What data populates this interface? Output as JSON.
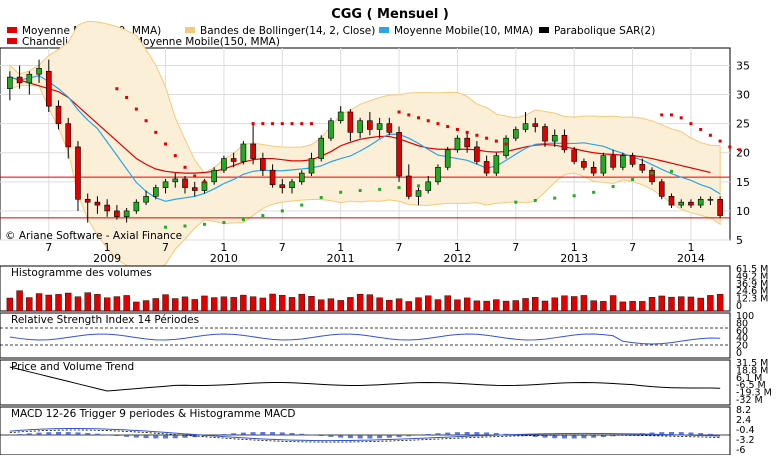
{
  "title": "CGG  ( Mensuel )",
  "copyright": "© Ariane Software - Axial Finance",
  "legend": [
    {
      "label": "Moyenne Mobile(20, MMA)",
      "color": "#e00000"
    },
    {
      "label": "Bandes de Bollinger(14, 2, Close)",
      "color": "#f5c97a"
    },
    {
      "label": "Moyenne Mobile(10, MMA)",
      "color": "#2aa6e8"
    },
    {
      "label": "Parabolique SAR(2)",
      "color": "#000000"
    },
    {
      "label": "Chandeliers(5)",
      "color": "#e00000"
    },
    {
      "label": "Moyenne Mobile(150, MMA)",
      "color": "#22cc22"
    }
  ],
  "x_axis": {
    "months": [
      {
        "label": "7",
        "i": 4
      },
      {
        "label": "1",
        "i": 10
      },
      {
        "label": "7",
        "i": 16
      },
      {
        "label": "1",
        "i": 22
      },
      {
        "label": "7",
        "i": 28
      },
      {
        "label": "1",
        "i": 34
      },
      {
        "label": "7",
        "i": 40
      },
      {
        "label": "1",
        "i": 46
      },
      {
        "label": "7",
        "i": 52
      },
      {
        "label": "1",
        "i": 58
      },
      {
        "label": "7",
        "i": 64
      },
      {
        "label": "1",
        "i": 70
      }
    ],
    "years": [
      {
        "label": "2009",
        "i": 10
      },
      {
        "label": "2010",
        "i": 22
      },
      {
        "label": "2011",
        "i": 34
      },
      {
        "label": "2012",
        "i": 46
      },
      {
        "label": "2013",
        "i": 58
      },
      {
        "label": "2014",
        "i": 70
      }
    ]
  },
  "panels": {
    "price": {
      "ticks": [
        "35",
        "30",
        "25",
        "20",
        "15",
        "10",
        "5"
      ]
    },
    "volume": {
      "title": "Histogramme des volumes",
      "ticks": [
        "61.5 M",
        "49.2 M",
        "36.9 M",
        "24.6 M",
        "12.3 M",
        "0"
      ]
    },
    "rsi": {
      "title": "Relative Strength Index 14 Périodes",
      "ticks": [
        "100",
        "80",
        "60",
        "40",
        "20",
        "0"
      ]
    },
    "pvt": {
      "title": "Price and Volume Trend",
      "ticks": [
        "31.5 M",
        "18.8 M",
        "6.1 M",
        "-6.5 M",
        "-19.3 M",
        "-32 M"
      ]
    },
    "macd": {
      "title": "MACD 12-26   Trigger 9 periodes & Histogramme MACD",
      "ticks": [
        "8.2",
        "2.4",
        "-0.4",
        "-3.2",
        "-6"
      ]
    }
  },
  "chart_data": {
    "type": "candlestick",
    "title": "CGG  ( Mensuel )",
    "price_range": [
      5,
      38
    ],
    "horizontal_lines": [
      15.8,
      8.8
    ],
    "candles": [
      {
        "o": 31,
        "h": 34,
        "l": 29,
        "c": 33
      },
      {
        "o": 33,
        "h": 35,
        "l": 31,
        "c": 32
      },
      {
        "o": 32,
        "h": 34,
        "l": 30,
        "c": 33.5
      },
      {
        "o": 33.5,
        "h": 36,
        "l": 32,
        "c": 34.5
      },
      {
        "o": 34,
        "h": 36,
        "l": 27,
        "c": 28
      },
      {
        "o": 28,
        "h": 29,
        "l": 24,
        "c": 25
      },
      {
        "o": 25,
        "h": 26,
        "l": 19,
        "c": 21
      },
      {
        "o": 21,
        "h": 22,
        "l": 10,
        "c": 12
      },
      {
        "o": 12,
        "h": 13,
        "l": 8,
        "c": 11.5
      },
      {
        "o": 11.5,
        "h": 12.5,
        "l": 9.5,
        "c": 11
      },
      {
        "o": 11,
        "h": 12,
        "l": 9,
        "c": 10
      },
      {
        "o": 10,
        "h": 11,
        "l": 8.5,
        "c": 9
      },
      {
        "o": 9,
        "h": 10.5,
        "l": 8,
        "c": 10
      },
      {
        "o": 10,
        "h": 12,
        "l": 9.5,
        "c": 11.5
      },
      {
        "o": 11.5,
        "h": 13.5,
        "l": 11,
        "c": 12.5
      },
      {
        "o": 12.5,
        "h": 14.5,
        "l": 12,
        "c": 14
      },
      {
        "o": 14,
        "h": 15.5,
        "l": 13,
        "c": 15
      },
      {
        "o": 15,
        "h": 16.5,
        "l": 14,
        "c": 15.5
      },
      {
        "o": 15.5,
        "h": 16,
        "l": 13,
        "c": 14
      },
      {
        "o": 14,
        "h": 15,
        "l": 12.5,
        "c": 13.5
      },
      {
        "o": 13.5,
        "h": 15.5,
        "l": 13,
        "c": 15
      },
      {
        "o": 15,
        "h": 17.5,
        "l": 14.5,
        "c": 17
      },
      {
        "o": 17,
        "h": 19.5,
        "l": 16.5,
        "c": 19
      },
      {
        "o": 19,
        "h": 20,
        "l": 17.5,
        "c": 18.5
      },
      {
        "o": 18.5,
        "h": 22,
        "l": 18,
        "c": 21.5
      },
      {
        "o": 21.5,
        "h": 25,
        "l": 18,
        "c": 19
      },
      {
        "o": 19,
        "h": 20,
        "l": 16,
        "c": 17
      },
      {
        "o": 17,
        "h": 18,
        "l": 14,
        "c": 14.5
      },
      {
        "o": 14.5,
        "h": 15.5,
        "l": 13,
        "c": 14
      },
      {
        "o": 14,
        "h": 15.5,
        "l": 13,
        "c": 15
      },
      {
        "o": 15,
        "h": 17,
        "l": 14.5,
        "c": 16.5
      },
      {
        "o": 16.5,
        "h": 20,
        "l": 16,
        "c": 19
      },
      {
        "o": 19,
        "h": 23,
        "l": 18.5,
        "c": 22.5
      },
      {
        "o": 22.5,
        "h": 26,
        "l": 22,
        "c": 25.5
      },
      {
        "o": 25.5,
        "h": 28,
        "l": 25,
        "c": 27
      },
      {
        "o": 27,
        "h": 27.5,
        "l": 22,
        "c": 23.5
      },
      {
        "o": 23.5,
        "h": 26,
        "l": 22.5,
        "c": 25.5
      },
      {
        "o": 25.5,
        "h": 27,
        "l": 23,
        "c": 24
      },
      {
        "o": 24,
        "h": 26,
        "l": 22.5,
        "c": 25
      },
      {
        "o": 25,
        "h": 26,
        "l": 23,
        "c": 23.5
      },
      {
        "o": 23.5,
        "h": 24.5,
        "l": 15,
        "c": 16
      },
      {
        "o": 16,
        "h": 18,
        "l": 12,
        "c": 12.5
      },
      {
        "o": 12.5,
        "h": 14,
        "l": 11,
        "c": 13.5
      },
      {
        "o": 13.5,
        "h": 16,
        "l": 13,
        "c": 15
      },
      {
        "o": 15,
        "h": 18,
        "l": 14.5,
        "c": 17.5
      },
      {
        "o": 17.5,
        "h": 21,
        "l": 17,
        "c": 20.5
      },
      {
        "o": 20.5,
        "h": 23,
        "l": 20,
        "c": 22.5
      },
      {
        "o": 22.5,
        "h": 23.5,
        "l": 20,
        "c": 21
      },
      {
        "o": 21,
        "h": 22,
        "l": 18,
        "c": 18.5
      },
      {
        "o": 18.5,
        "h": 19.5,
        "l": 16,
        "c": 16.5
      },
      {
        "o": 16.5,
        "h": 20,
        "l": 16,
        "c": 19.5
      },
      {
        "o": 19.5,
        "h": 23,
        "l": 19,
        "c": 22.5
      },
      {
        "o": 22.5,
        "h": 24.5,
        "l": 22,
        "c": 24
      },
      {
        "o": 24,
        "h": 27,
        "l": 23.5,
        "c": 25
      },
      {
        "o": 25,
        "h": 26,
        "l": 23.5,
        "c": 24.5
      },
      {
        "o": 24.5,
        "h": 25,
        "l": 21,
        "c": 22
      },
      {
        "o": 22,
        "h": 24,
        "l": 21,
        "c": 23
      },
      {
        "o": 23,
        "h": 24,
        "l": 20,
        "c": 20.5
      },
      {
        "o": 20.5,
        "h": 21,
        "l": 18,
        "c": 18.5
      },
      {
        "o": 18.5,
        "h": 19,
        "l": 17,
        "c": 17.5
      },
      {
        "o": 17.5,
        "h": 18.5,
        "l": 16,
        "c": 16.5
      },
      {
        "o": 16.5,
        "h": 20,
        "l": 16,
        "c": 19.5
      },
      {
        "o": 19.5,
        "h": 20.5,
        "l": 17,
        "c": 17.5
      },
      {
        "o": 17.5,
        "h": 20,
        "l": 17,
        "c": 19.5
      },
      {
        "o": 19.5,
        "h": 20,
        "l": 17.5,
        "c": 18
      },
      {
        "o": 18,
        "h": 19,
        "l": 16.5,
        "c": 17
      },
      {
        "o": 17,
        "h": 17.5,
        "l": 14.5,
        "c": 15
      },
      {
        "o": 15,
        "h": 15.5,
        "l": 12,
        "c": 12.5
      },
      {
        "o": 12.5,
        "h": 13,
        "l": 10.5,
        "c": 11
      },
      {
        "o": 11,
        "h": 12,
        "l": 10.5,
        "c": 11.5
      },
      {
        "o": 11.5,
        "h": 12,
        "l": 10.5,
        "c": 11
      },
      {
        "o": 11,
        "h": 12.5,
        "l": 10.5,
        "c": 12
      },
      {
        "o": 12,
        "h": 12.5,
        "l": 11,
        "c": 12
      },
      {
        "o": 12,
        "h": 12.5,
        "l": 8.8,
        "c": 9.2
      }
    ],
    "sar": [
      null,
      null,
      null,
      null,
      null,
      null,
      null,
      null,
      null,
      null,
      null,
      31,
      29.5,
      27.5,
      25.5,
      23.5,
      21.5,
      19.5,
      17.5,
      16,
      15,
      null,
      null,
      null,
      null,
      25,
      25,
      25,
      25,
      25,
      25,
      25,
      null,
      null,
      null,
      null,
      null,
      null,
      null,
      null,
      27,
      26.5,
      26,
      25.5,
      25,
      24.5,
      24,
      23.5,
      23,
      22.5,
      22,
      21.5,
      null,
      null,
      null,
      null,
      null,
      null,
      null,
      null,
      null,
      null,
      null,
      null,
      null,
      null,
      null,
      26.5,
      26.5,
      26,
      25,
      24,
      23,
      22,
      21,
      20.5
    ],
    "sar_green": [
      [
        16,
        7.2
      ],
      [
        18,
        7.4
      ],
      [
        20,
        7.7
      ],
      [
        22,
        8
      ],
      [
        24,
        8.5
      ],
      [
        26,
        9.2
      ],
      [
        28,
        10
      ],
      [
        30,
        11
      ],
      [
        32,
        12.3
      ],
      [
        34,
        13.2
      ],
      [
        36,
        13.5
      ],
      [
        38,
        13.7
      ],
      [
        40,
        14
      ],
      [
        42,
        14.3
      ],
      [
        52,
        11.5
      ],
      [
        54,
        11.8
      ],
      [
        56,
        12.2
      ],
      [
        58,
        12.6
      ],
      [
        60,
        13.2
      ],
      [
        62,
        14.2
      ],
      [
        64,
        15.4
      ],
      [
        66,
        16.5
      ],
      [
        68,
        16.8
      ]
    ],
    "ma20": [
      33,
      32.5,
      32,
      31.5,
      31,
      30.5,
      29.5,
      28,
      26.5,
      25,
      23.5,
      22,
      20.5,
      19,
      18,
      17.2,
      16.8,
      16.6,
      16.5,
      16.5,
      16.6,
      16.8,
      17.2,
      17.8,
      18.4,
      18.8,
      19,
      19,
      18.8,
      18.6,
      18.6,
      18.8,
      19.4,
      20.2,
      21.2,
      21.8,
      22.3,
      22.6,
      22.8,
      22.8,
      22.4,
      21.8,
      21.2,
      20.8,
      20.6,
      20.6,
      20.6,
      20.6,
      20.5,
      20.2,
      20.1,
      20.2,
      20.6,
      21,
      21.3,
      21.4,
      21.3,
      21,
      20.7,
      20.3,
      20,
      19.8,
      19.7,
      19.6,
      19.5,
      19.3,
      19,
      18.6,
      18.2,
      17.8,
      17.4,
      17,
      16.6
    ]
  }
}
